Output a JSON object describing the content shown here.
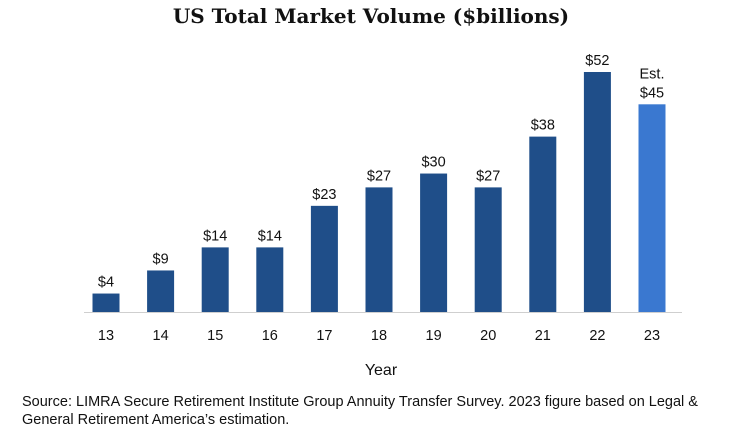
{
  "chart_data": {
    "type": "bar",
    "title": "US Total Market Volume ($billions)",
    "xlabel": "Year",
    "ylabel": "",
    "categories": [
      "13",
      "14",
      "15",
      "16",
      "17",
      "18",
      "19",
      "20",
      "21",
      "22",
      "23"
    ],
    "values": [
      4,
      9,
      14,
      14,
      23,
      27,
      30,
      27,
      38,
      52,
      45
    ],
    "value_labels": [
      "$4",
      "$9",
      "$14",
      "$14",
      "$23",
      "$27",
      "$30",
      "$27",
      "$38",
      "$52",
      "$45"
    ],
    "estimate_prefix": [
      "",
      "",
      "",
      "",
      "",
      "",
      "",
      "",
      "",
      "",
      "Est."
    ],
    "ylim": [
      0,
      52
    ],
    "grid": false,
    "colors": {
      "actual": "#1f4e89",
      "estimate": "#3a78d0",
      "baseline": "#cfcfcf"
    }
  },
  "source_note": "Source: LIMRA Secure Retirement Institute Group Annuity Transfer Survey. 2023 figure based on Legal & General Retirement America’s estimation."
}
